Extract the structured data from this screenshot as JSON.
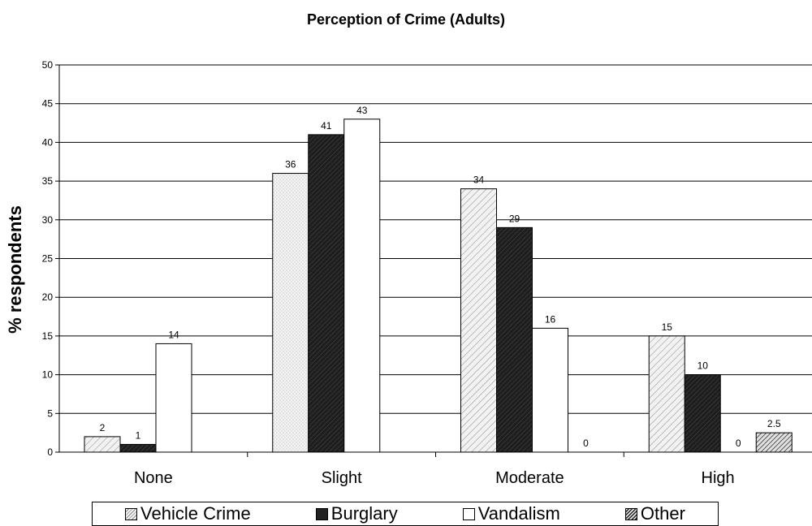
{
  "chart_data": {
    "type": "bar",
    "title": "Perception of Crime (Adults)",
    "xlabel": "",
    "ylabel": "% respondents",
    "categories": [
      "None",
      "Slight",
      "Moderate",
      "High"
    ],
    "ylim": [
      0,
      50
    ],
    "yticks": [
      0,
      5,
      10,
      15,
      20,
      25,
      30,
      35,
      40,
      45,
      50
    ],
    "grid": true,
    "legend_position": "bottom",
    "series": [
      {
        "name": "Vehicle Crime",
        "values": [
          2,
          36,
          34,
          15
        ],
        "labels": [
          "2",
          "36",
          "34",
          "15"
        ],
        "color": "#d9d9d9"
      },
      {
        "name": "Burglary",
        "values": [
          1,
          41,
          29,
          10
        ],
        "labels": [
          "1",
          "41",
          "29",
          "10"
        ],
        "color": "#2a2a2a"
      },
      {
        "name": "Vandalism",
        "values": [
          14,
          43,
          16,
          0
        ],
        "labels": [
          "14",
          "43",
          "16",
          "0"
        ],
        "color": "#ffffff"
      },
      {
        "name": "Other",
        "values": [
          null,
          null,
          0,
          2.5
        ],
        "labels": [
          null,
          null,
          "0",
          "2.5"
        ],
        "color": "#bdbdbd"
      }
    ]
  }
}
